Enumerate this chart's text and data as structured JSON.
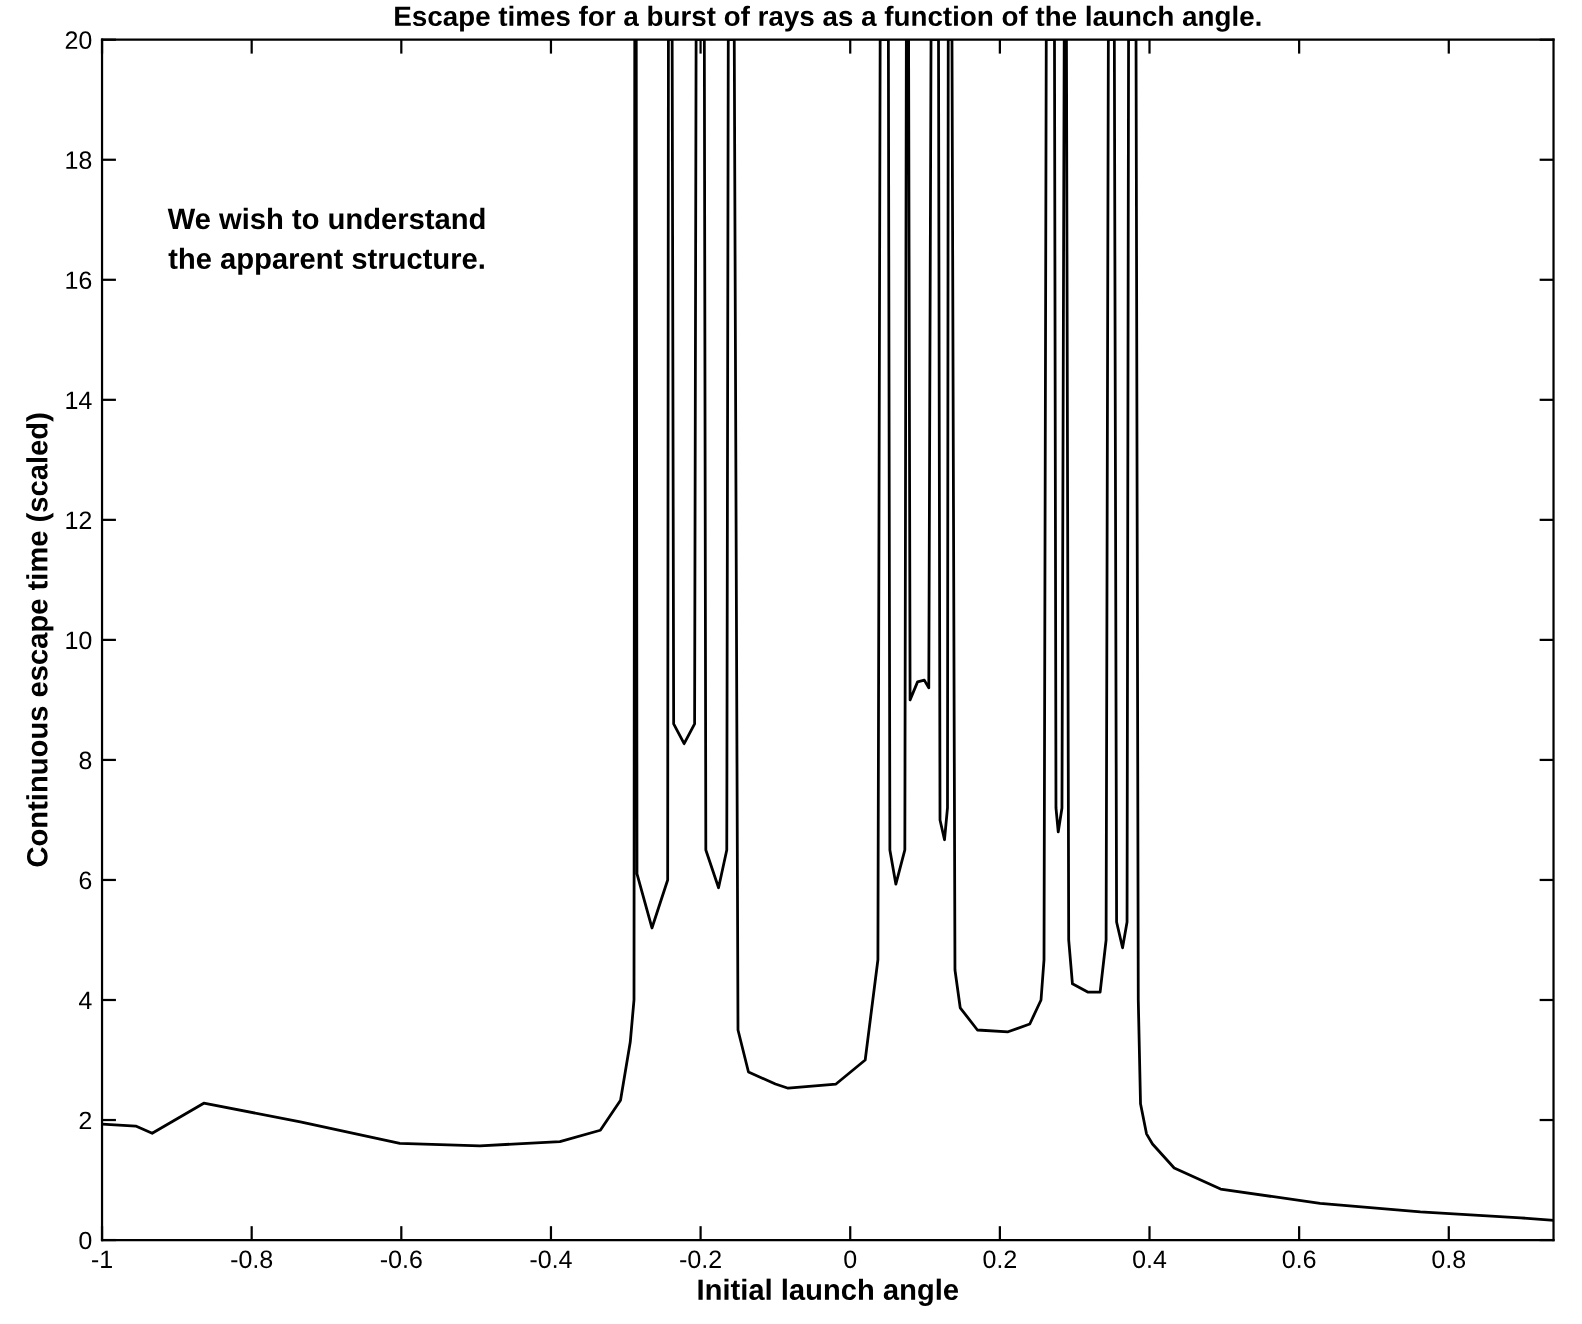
{
  "chart_data": {
    "type": "line",
    "title": "Escape times for a burst of rays as a function of the launch angle.",
    "xlabel": "Initial launch angle",
    "ylabel": "Continuous escape time (scaled)",
    "annotations": [
      "We wish to understand\nthe apparent structure."
    ],
    "xlim": [
      -1,
      0.94
    ],
    "ylim": [
      0,
      20
    ],
    "xticks": [
      -1,
      -0.8,
      -0.6,
      -0.4,
      -0.2,
      0,
      0.2,
      0.4,
      0.6,
      0.8
    ],
    "yticks": [
      0,
      2,
      4,
      6,
      8,
      10,
      12,
      14,
      16,
      18,
      20
    ],
    "grid": false,
    "marker": "none",
    "line_style": "solid",
    "series": [
      {
        "color": "#000000",
        "x": [
          -1,
          -0.955,
          -0.933,
          -0.864,
          -0.735,
          -0.602,
          -0.495,
          -0.388,
          -0.334,
          -0.307,
          -0.294,
          -0.289,
          -0.288,
          -0.286,
          -0.285,
          -0.265,
          -0.244,
          -0.243,
          -0.238,
          -0.236,
          -0.222,
          -0.208,
          -0.206,
          -0.195,
          -0.193,
          -0.176,
          -0.165,
          -0.163,
          -0.155,
          -0.15,
          -0.136,
          -0.1,
          -0.083,
          -0.019,
          0.02,
          0.037,
          0.04,
          0.051,
          0.053,
          0.061,
          0.073,
          0.075,
          0.078,
          0.08,
          0.09,
          0.099,
          0.105,
          0.108,
          0.118,
          0.12,
          0.126,
          0.13,
          0.131,
          0.136,
          0.14,
          0.147,
          0.17,
          0.211,
          0.24,
          0.255,
          0.259,
          0.262,
          0.273,
          0.275,
          0.278,
          0.283,
          0.286,
          0.289,
          0.292,
          0.297,
          0.318,
          0.334,
          0.342,
          0.345,
          0.353,
          0.356,
          0.364,
          0.37,
          0.372,
          0.382,
          0.385,
          0.388,
          0.396,
          0.404,
          0.433,
          0.495,
          0.628,
          0.762,
          0.896,
          0.94
        ],
        "values": [
          1.93,
          1.9,
          1.78,
          2.28,
          1.97,
          1.61,
          1.57,
          1.64,
          1.83,
          2.33,
          3.3,
          4,
          20,
          20,
          6.1,
          5.2,
          6,
          20,
          20,
          8.6,
          8.27,
          8.6,
          20,
          20,
          6.5,
          5.87,
          6.5,
          20,
          20,
          3.5,
          2.8,
          2.6,
          2.53,
          2.6,
          3.0,
          4.67,
          20,
          20,
          6.5,
          5.93,
          6.5,
          20,
          20,
          9.0,
          9.3,
          9.33,
          9.2,
          20,
          20,
          7,
          6.67,
          7.2,
          20,
          20,
          4.5,
          3.87,
          3.5,
          3.47,
          3.6,
          4.0,
          4.67,
          20,
          20,
          7.2,
          6.8,
          7.2,
          20,
          20,
          5,
          4.27,
          4.13,
          4.13,
          5,
          20,
          20,
          5.3,
          4.87,
          5.3,
          20,
          20,
          4,
          2.27,
          1.77,
          1.6,
          1.2,
          0.85,
          0.61,
          0.47,
          0.37,
          0.33
        ]
      }
    ]
  }
}
